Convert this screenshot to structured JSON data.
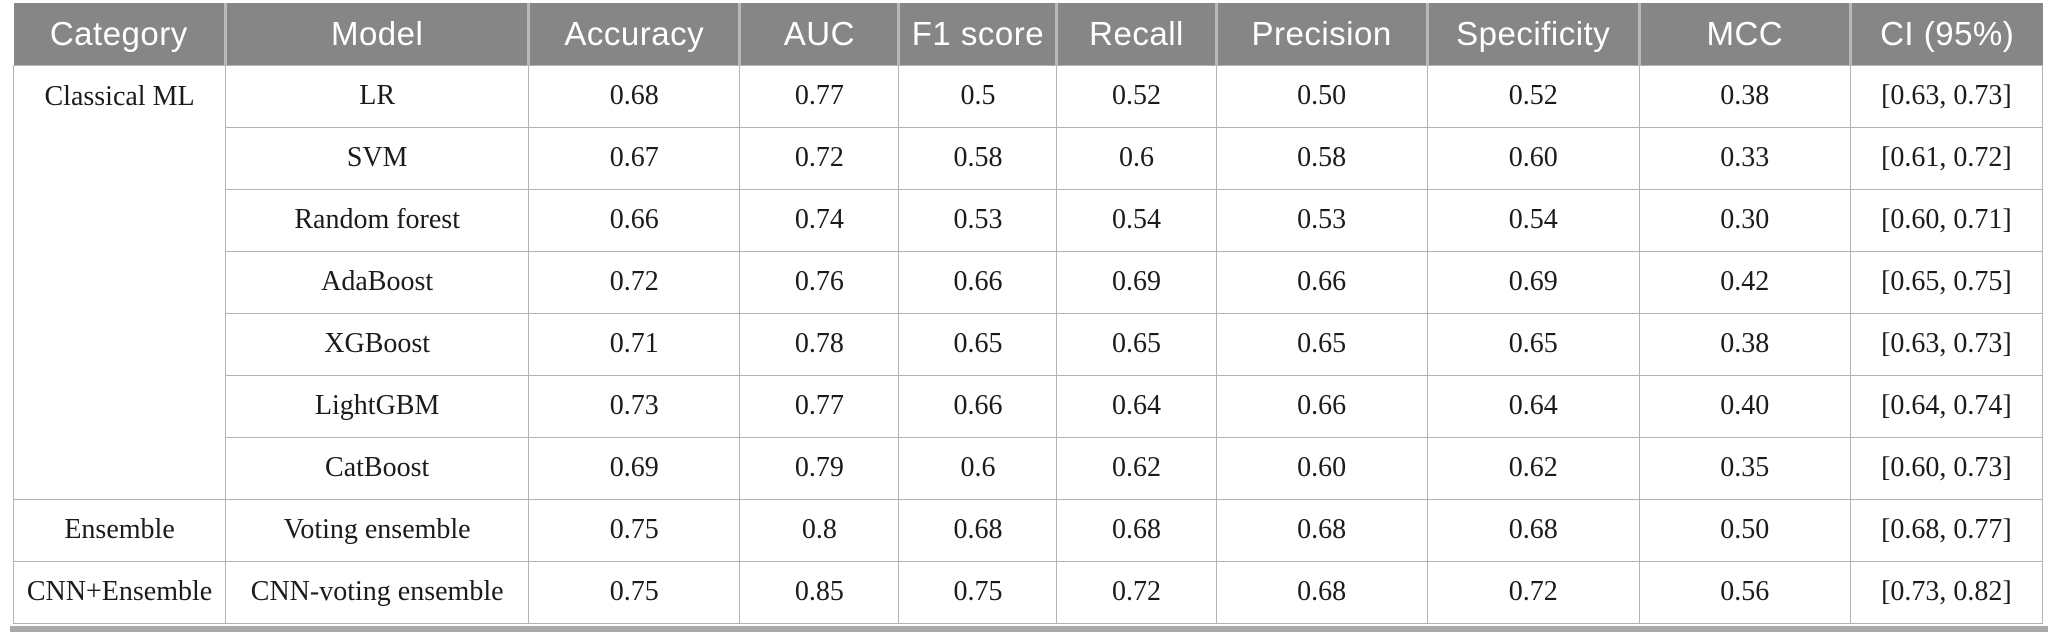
{
  "colors": {
    "header_bg": "#868686",
    "header_text": "#ffffff",
    "header_separator": "#b9b9b9",
    "grid_border": "#b3b3b3",
    "body_text": "#1b1b1b",
    "bottom_rule": "#a9a9a9"
  },
  "chart_data": {
    "type": "table",
    "columns": [
      "Category",
      "Model",
      "Accuracy",
      "AUC",
      "F1 score",
      "Recall",
      "Precision",
      "Specificity",
      "MCC",
      "CI (95%)"
    ],
    "groups": [
      {
        "category": "Classical ML",
        "rows": [
          {
            "model": "LR",
            "values": [
              "0.68",
              "0.77",
              "0.5",
              "0.52",
              "0.50",
              "0.52",
              "0.38",
              "[0.63, 0.73]"
            ]
          },
          {
            "model": "SVM",
            "values": [
              "0.67",
              "0.72",
              "0.58",
              "0.6",
              "0.58",
              "0.60",
              "0.33",
              "[0.61, 0.72]"
            ]
          },
          {
            "model": "Random forest",
            "values": [
              "0.66",
              "0.74",
              "0.53",
              "0.54",
              "0.53",
              "0.54",
              "0.30",
              "[0.60, 0.71]"
            ]
          },
          {
            "model": "AdaBoost",
            "values": [
              "0.72",
              "0.76",
              "0.66",
              "0.69",
              "0.66",
              "0.69",
              "0.42",
              "[0.65, 0.75]"
            ]
          },
          {
            "model": "XGBoost",
            "values": [
              "0.71",
              "0.78",
              "0.65",
              "0.65",
              "0.65",
              "0.65",
              "0.38",
              "[0.63, 0.73]"
            ]
          },
          {
            "model": "LightGBM",
            "values": [
              "0.73",
              "0.77",
              "0.66",
              "0.64",
              "0.66",
              "0.64",
              "0.40",
              "[0.64, 0.74]"
            ]
          },
          {
            "model": "CatBoost",
            "values": [
              "0.69",
              "0.79",
              "0.6",
              "0.62",
              "0.60",
              "0.62",
              "0.35",
              "[0.60, 0.73]"
            ]
          }
        ]
      },
      {
        "category": "Ensemble",
        "rows": [
          {
            "model": "Voting ensemble",
            "values": [
              "0.75",
              "0.8",
              "0.68",
              "0.68",
              "0.68",
              "0.68",
              "0.50",
              "[0.68, 0.77]"
            ]
          }
        ]
      },
      {
        "category": "CNN+Ensemble",
        "rows": [
          {
            "model": "CNN-voting ensemble",
            "values": [
              "0.75",
              "0.85",
              "0.75",
              "0.72",
              "0.68",
              "0.72",
              "0.56",
              "[0.73, 0.82]"
            ]
          }
        ]
      }
    ]
  }
}
